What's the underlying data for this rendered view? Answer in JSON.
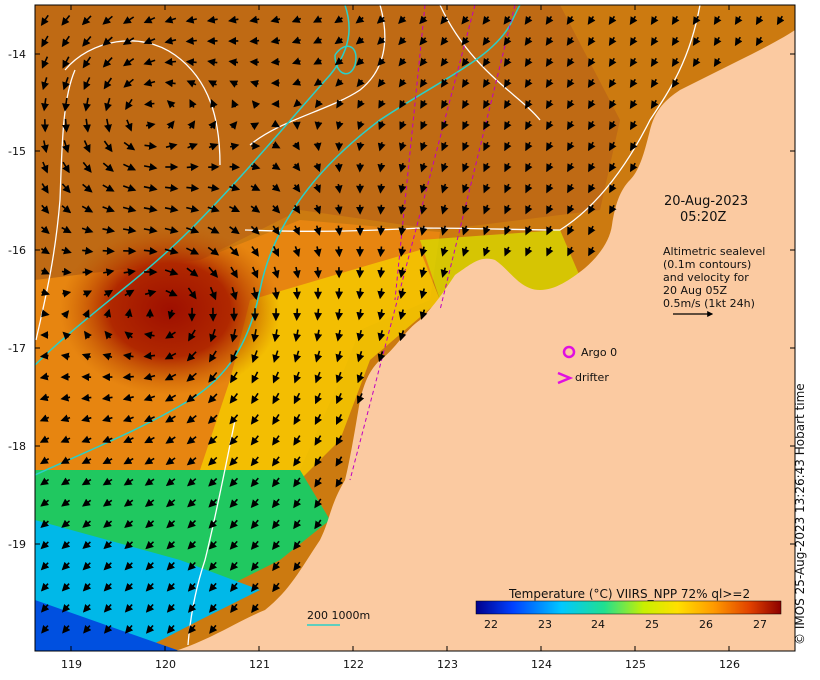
{
  "map": {
    "date_label": "20-Aug-2023",
    "time_label": "05:20Z",
    "legend_lines": [
      "Altimetric sealevel",
      "(0.1m contours)",
      "and velocity for",
      "20 Aug 05Z",
      "0.5m/s (1kt 24h)"
    ],
    "argo_label": "Argo 0",
    "drifter_label": "drifter",
    "bathy_label": "200  1000m",
    "credit": "© IMOS 25-Aug-2023 13:26:43 Hobart time",
    "colorbar_title": "Temperature (°C) VIIRS_NPP 72% ql>=2",
    "colorbar_ticks": [
      "22",
      "23",
      "24",
      "25",
      "26",
      "27"
    ],
    "x_ticks": [
      "119",
      "120",
      "121",
      "122",
      "123",
      "124",
      "125",
      "126"
    ],
    "y_ticks": [
      "-14",
      "-15",
      "-16",
      "-17",
      "-18",
      "-19"
    ],
    "colors": {
      "land": "#fbcaa1",
      "argo": "#e010e0",
      "drifter": "#e010e0",
      "bathy_200": "#2ad0c8",
      "contour": "#ffffff",
      "track": "#c000c0"
    }
  }
}
